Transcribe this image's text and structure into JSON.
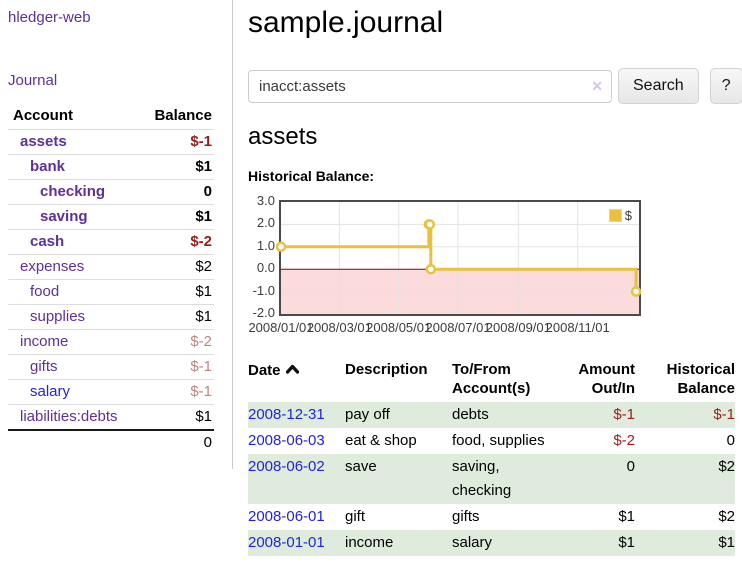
{
  "brand": "hledger-web",
  "nav": {
    "journal": "Journal"
  },
  "page": {
    "title": "sample.journal"
  },
  "search": {
    "value": "inacct:assets",
    "clear": "✕",
    "submit": "Search",
    "help": "?"
  },
  "account": {
    "heading": "assets",
    "chart_title": "Historical Balance:"
  },
  "sidebar": {
    "col_account": "Account",
    "col_balance": "Balance",
    "accounts": [
      {
        "name": "assets",
        "level": 1,
        "bold": true,
        "balance": "$-1",
        "tone": "neg-strong",
        "link": "purple"
      },
      {
        "name": "bank",
        "level": 2,
        "bold": true,
        "balance": "$1",
        "tone": "pos",
        "link": "purple"
      },
      {
        "name": "checking",
        "level": 3,
        "bold": true,
        "balance": "0",
        "tone": "pos",
        "link": "purple"
      },
      {
        "name": "saving",
        "level": 3,
        "bold": true,
        "balance": "$1",
        "tone": "pos",
        "link": "purple"
      },
      {
        "name": "cash",
        "level": 2,
        "bold": true,
        "balance": "$-2",
        "tone": "neg-strong",
        "link": "purple"
      },
      {
        "name": "expenses",
        "level": 1,
        "bold": false,
        "balance": "$2",
        "tone": "pos",
        "link": "purple"
      },
      {
        "name": "food",
        "level": 2,
        "bold": false,
        "balance": "$1",
        "tone": "pos",
        "link": "purple"
      },
      {
        "name": "supplies",
        "level": 2,
        "bold": false,
        "balance": "$1",
        "tone": "pos",
        "link": "purple"
      },
      {
        "name": "income",
        "level": 1,
        "bold": false,
        "balance": "$-2",
        "tone": "neg-soft",
        "link": "purple"
      },
      {
        "name": "gifts",
        "level": 2,
        "bold": false,
        "balance": "$-1",
        "tone": "neg-soft",
        "link": "purple"
      },
      {
        "name": "salary",
        "level": 2,
        "bold": false,
        "balance": "$-1",
        "tone": "neg-soft",
        "link": "blue"
      },
      {
        "name": "liabilities:debts",
        "level": 1,
        "bold": false,
        "balance": "$1",
        "tone": "pos",
        "link": "purple"
      }
    ],
    "total": "0"
  },
  "chart_data": {
    "type": "line",
    "step": true,
    "title": "Historical Balance",
    "x_range": [
      "2008-01-01",
      "2009-01-03"
    ],
    "x_ticks": [
      {
        "date": "2008-01-01",
        "label": "2008/01/01"
      },
      {
        "date": "2008-03-01",
        "label": "2008/03/01"
      },
      {
        "date": "2008-05-01",
        "label": "2008/05/01"
      },
      {
        "date": "2008-07-01",
        "label": "2008/07/01"
      },
      {
        "date": "2008-09-01",
        "label": "2008/09/01"
      },
      {
        "date": "2008-11-01",
        "label": "2008/11/01"
      }
    ],
    "y_ticks": [
      "3.0",
      "2.0",
      "1.0",
      "0.0",
      "-1.0",
      "-2.0"
    ],
    "ylim": [
      -2,
      3
    ],
    "series": [
      {
        "name": "$",
        "color": "#e8c23f",
        "points": [
          [
            "2008-01-01",
            1
          ],
          [
            "2008-06-01",
            2
          ],
          [
            "2008-06-02",
            2
          ],
          [
            "2008-06-03",
            0
          ],
          [
            "2008-12-31",
            -1
          ]
        ]
      }
    ],
    "legend_position": "top-right",
    "grid": true,
    "zero_line_color": "#8b0000",
    "negative_fill": "#fbdbdb"
  },
  "register": {
    "headers": {
      "date": "Date",
      "description": "Description",
      "accounts_l1": "To/From",
      "accounts_l2": "Account(s)",
      "amount_l1": "Amount",
      "amount_l2": "Out/In",
      "balance_l1": "Historical",
      "balance_l2": "Balance"
    },
    "sort": "date-ascending",
    "rows": [
      {
        "date": "2008-12-31",
        "description": "pay off",
        "accounts": "debts",
        "amount": "$-1",
        "amount_neg": true,
        "balance": "$-1",
        "balance_neg": true
      },
      {
        "date": "2008-06-03",
        "description": "eat & shop",
        "accounts": "food, supplies",
        "amount": "$-2",
        "amount_neg": true,
        "balance": "0",
        "balance_neg": false
      },
      {
        "date": "2008-06-02",
        "description": "save",
        "accounts": "saving, checking",
        "amount": "0",
        "amount_neg": false,
        "balance": "$2",
        "balance_neg": false
      },
      {
        "date": "2008-06-01",
        "description": "gift",
        "accounts": "gifts",
        "amount": "$1",
        "amount_neg": false,
        "balance": "$2",
        "balance_neg": false
      },
      {
        "date": "2008-01-01",
        "description": "income",
        "accounts": "salary",
        "amount": "$1",
        "amount_neg": false,
        "balance": "$1",
        "balance_neg": false
      }
    ]
  },
  "colors": {
    "link_purple": "#5e2f9d",
    "link_blue": "#2222dd",
    "negative_strong": "#9c1b1b",
    "negative_soft": "#bf8484",
    "row_green": "#dfecdd",
    "chart_gold": "#e8c23f"
  }
}
